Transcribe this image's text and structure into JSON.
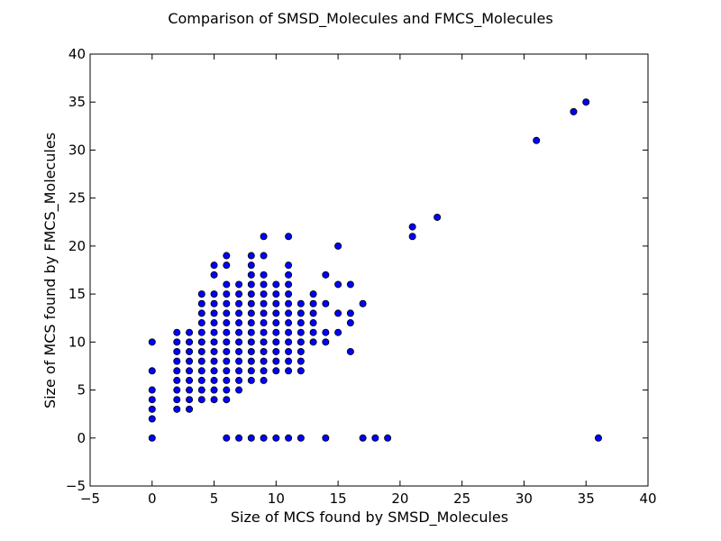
{
  "chart_data": {
    "type": "scatter",
    "title": "Comparison of SMSD_Molecules and FMCS_Molecules",
    "xlabel": "Size of MCS found by SMSD_Molecules",
    "ylabel": "Size of MCS found by FMCS_Molecules",
    "xlim": [
      -5,
      40
    ],
    "ylim": [
      -5,
      40
    ],
    "xticks": [
      "−5",
      "0",
      "5",
      "10",
      "15",
      "20",
      "25",
      "30",
      "35",
      "40"
    ],
    "yticks": [
      "−5",
      "0",
      "5",
      "10",
      "15",
      "20",
      "25",
      "30",
      "35",
      "40"
    ],
    "grid": false,
    "marker_color": "#0000ff",
    "marker_edge": "#000000",
    "points": [
      [
        0,
        0
      ],
      [
        0,
        2
      ],
      [
        0,
        3
      ],
      [
        0,
        4
      ],
      [
        0,
        5
      ],
      [
        0,
        7
      ],
      [
        0,
        10
      ],
      [
        2,
        3
      ],
      [
        2,
        4
      ],
      [
        2,
        5
      ],
      [
        2,
        6
      ],
      [
        2,
        7
      ],
      [
        2,
        8
      ],
      [
        2,
        9
      ],
      [
        2,
        10
      ],
      [
        2,
        11
      ],
      [
        3,
        3
      ],
      [
        3,
        4
      ],
      [
        3,
        5
      ],
      [
        3,
        6
      ],
      [
        3,
        7
      ],
      [
        3,
        8
      ],
      [
        3,
        9
      ],
      [
        3,
        10
      ],
      [
        3,
        11
      ],
      [
        4,
        4
      ],
      [
        4,
        5
      ],
      [
        4,
        6
      ],
      [
        4,
        7
      ],
      [
        4,
        8
      ],
      [
        4,
        9
      ],
      [
        4,
        10
      ],
      [
        4,
        11
      ],
      [
        4,
        12
      ],
      [
        4,
        13
      ],
      [
        4,
        14
      ],
      [
        4,
        15
      ],
      [
        5,
        4
      ],
      [
        5,
        5
      ],
      [
        5,
        6
      ],
      [
        5,
        7
      ],
      [
        5,
        8
      ],
      [
        5,
        9
      ],
      [
        5,
        10
      ],
      [
        5,
        11
      ],
      [
        5,
        12
      ],
      [
        5,
        13
      ],
      [
        5,
        14
      ],
      [
        5,
        15
      ],
      [
        5,
        17
      ],
      [
        5,
        18
      ],
      [
        6,
        0
      ],
      [
        6,
        4
      ],
      [
        6,
        5
      ],
      [
        6,
        6
      ],
      [
        6,
        7
      ],
      [
        6,
        8
      ],
      [
        6,
        9
      ],
      [
        6,
        10
      ],
      [
        6,
        11
      ],
      [
        6,
        12
      ],
      [
        6,
        13
      ],
      [
        6,
        14
      ],
      [
        6,
        15
      ],
      [
        6,
        16
      ],
      [
        6,
        18
      ],
      [
        6,
        19
      ],
      [
        7,
        0
      ],
      [
        7,
        5
      ],
      [
        7,
        6
      ],
      [
        7,
        7
      ],
      [
        7,
        8
      ],
      [
        7,
        9
      ],
      [
        7,
        10
      ],
      [
        7,
        11
      ],
      [
        7,
        12
      ],
      [
        7,
        13
      ],
      [
        7,
        14
      ],
      [
        7,
        15
      ],
      [
        7,
        16
      ],
      [
        8,
        0
      ],
      [
        8,
        6
      ],
      [
        8,
        7
      ],
      [
        8,
        8
      ],
      [
        8,
        9
      ],
      [
        8,
        10
      ],
      [
        8,
        11
      ],
      [
        8,
        12
      ],
      [
        8,
        13
      ],
      [
        8,
        14
      ],
      [
        8,
        15
      ],
      [
        8,
        16
      ],
      [
        8,
        17
      ],
      [
        8,
        18
      ],
      [
        8,
        19
      ],
      [
        9,
        0
      ],
      [
        9,
        6
      ],
      [
        9,
        7
      ],
      [
        9,
        8
      ],
      [
        9,
        9
      ],
      [
        9,
        10
      ],
      [
        9,
        11
      ],
      [
        9,
        12
      ],
      [
        9,
        13
      ],
      [
        9,
        14
      ],
      [
        9,
        15
      ],
      [
        9,
        16
      ],
      [
        9,
        17
      ],
      [
        9,
        19
      ],
      [
        9,
        21
      ],
      [
        10,
        0
      ],
      [
        10,
        7
      ],
      [
        10,
        8
      ],
      [
        10,
        9
      ],
      [
        10,
        10
      ],
      [
        10,
        11
      ],
      [
        10,
        12
      ],
      [
        10,
        13
      ],
      [
        10,
        14
      ],
      [
        10,
        15
      ],
      [
        10,
        16
      ],
      [
        11,
        0
      ],
      [
        11,
        7
      ],
      [
        11,
        8
      ],
      [
        11,
        9
      ],
      [
        11,
        10
      ],
      [
        11,
        11
      ],
      [
        11,
        12
      ],
      [
        11,
        13
      ],
      [
        11,
        14
      ],
      [
        11,
        15
      ],
      [
        11,
        16
      ],
      [
        11,
        17
      ],
      [
        11,
        18
      ],
      [
        11,
        21
      ],
      [
        12,
        0
      ],
      [
        12,
        7
      ],
      [
        12,
        8
      ],
      [
        12,
        9
      ],
      [
        12,
        10
      ],
      [
        12,
        11
      ],
      [
        12,
        12
      ],
      [
        12,
        13
      ],
      [
        12,
        14
      ],
      [
        13,
        10
      ],
      [
        13,
        11
      ],
      [
        13,
        12
      ],
      [
        13,
        13
      ],
      [
        13,
        14
      ],
      [
        13,
        15
      ],
      [
        14,
        0
      ],
      [
        14,
        10
      ],
      [
        14,
        11
      ],
      [
        14,
        14
      ],
      [
        14,
        17
      ],
      [
        15,
        11
      ],
      [
        15,
        13
      ],
      [
        15,
        16
      ],
      [
        15,
        20
      ],
      [
        16,
        9
      ],
      [
        16,
        12
      ],
      [
        16,
        13
      ],
      [
        16,
        16
      ],
      [
        17,
        0
      ],
      [
        17,
        14
      ],
      [
        18,
        0
      ],
      [
        19,
        0
      ],
      [
        21,
        21
      ],
      [
        21,
        22
      ],
      [
        23,
        23
      ],
      [
        31,
        31
      ],
      [
        34,
        34
      ],
      [
        35,
        35
      ],
      [
        36,
        0
      ]
    ]
  }
}
